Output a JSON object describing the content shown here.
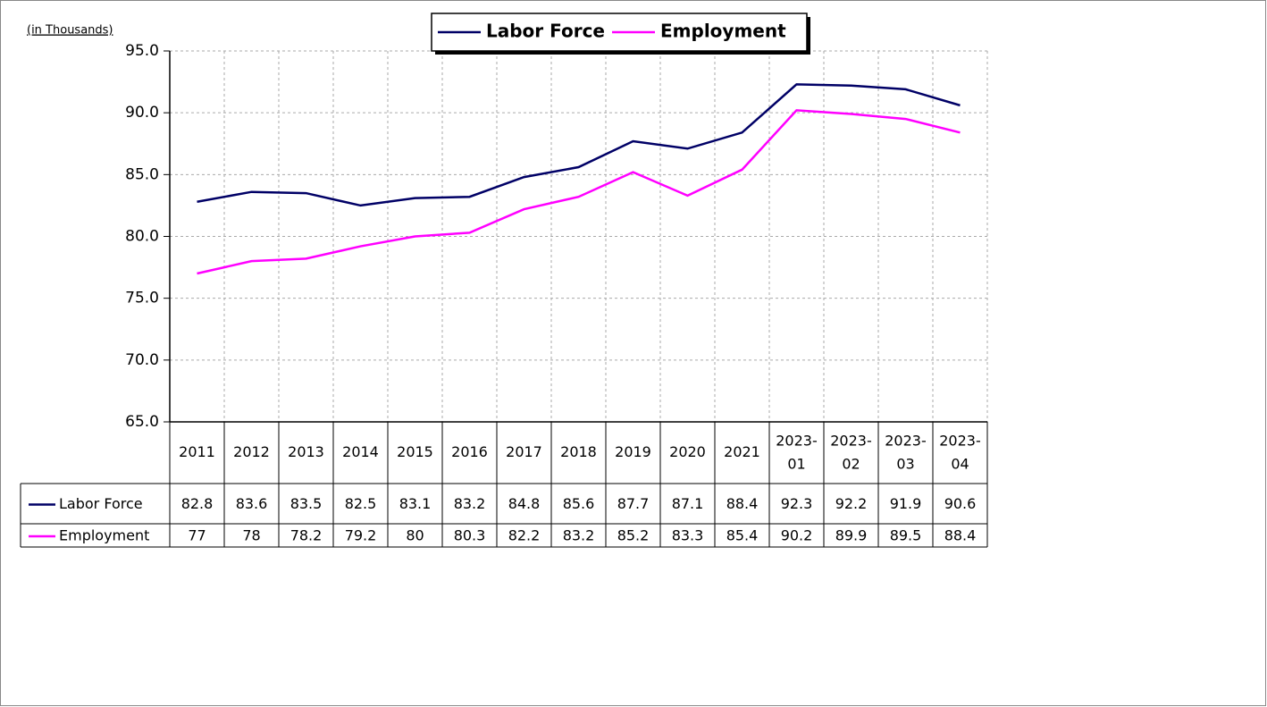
{
  "chart_data": {
    "type": "line",
    "y_axis_label": "(in Thousands)",
    "categories": [
      "2011",
      "2012",
      "2013",
      "2014",
      "2015",
      "2016",
      "2017",
      "2018",
      "2019",
      "2020",
      "2021",
      "2023-01",
      "2023-02",
      "2023-03",
      "2023-04"
    ],
    "series": [
      {
        "name": "Labor Force",
        "color": "#000066",
        "values": [
          82.8,
          83.6,
          83.5,
          82.5,
          83.1,
          83.2,
          84.8,
          85.6,
          87.7,
          87.1,
          88.4,
          92.3,
          92.2,
          91.9,
          90.6
        ]
      },
      {
        "name": "Employment",
        "color": "#ff00ff",
        "values": [
          77,
          78,
          78.2,
          79.2,
          80,
          80.3,
          82.2,
          83.2,
          85.2,
          83.3,
          85.4,
          90.2,
          89.9,
          89.5,
          88.4
        ]
      }
    ],
    "ylim": [
      65,
      95
    ],
    "yticks": [
      {
        "value": 65,
        "label": "65.0"
      },
      {
        "value": 70,
        "label": "70.0"
      },
      {
        "value": 75,
        "label": "75.0"
      },
      {
        "value": 80,
        "label": "80.0"
      },
      {
        "value": 85,
        "label": "85.0"
      },
      {
        "value": 90,
        "label": "90.0"
      },
      {
        "value": 95,
        "label": "95.0"
      }
    ],
    "grid": true,
    "legend": "top"
  }
}
